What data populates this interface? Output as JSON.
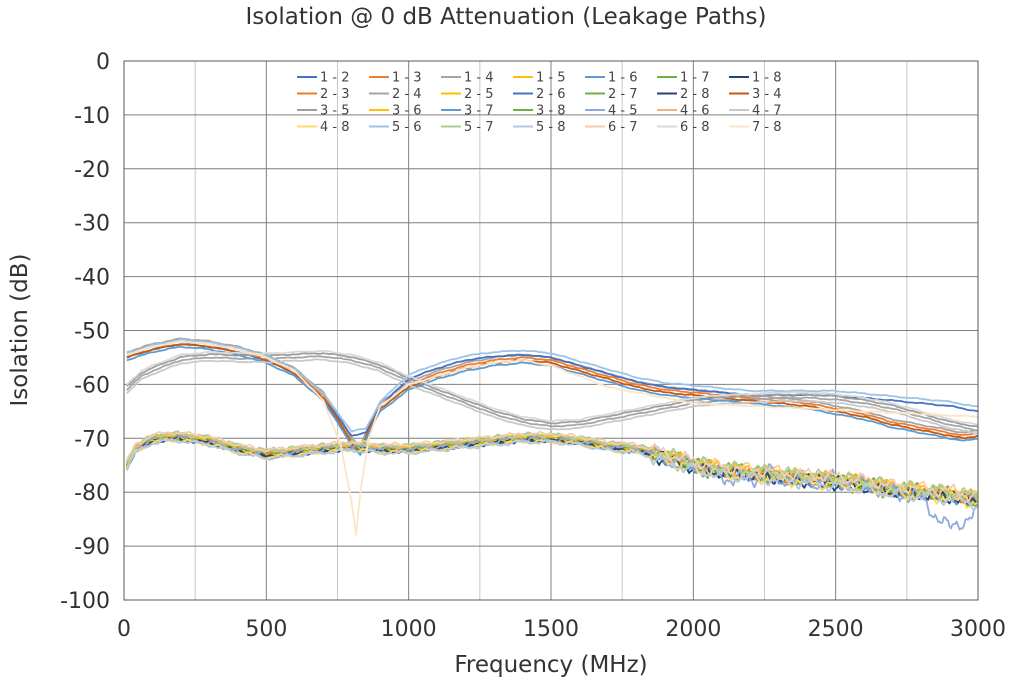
{
  "chart_data": {
    "type": "line",
    "title": "Isolation @ 0 dB Attenuation (Leakage Paths)",
    "xlabel": "Frequency (MHz)",
    "ylabel": "Isolation (dB)",
    "xlim": [
      0,
      3000
    ],
    "ylim": [
      -100,
      0
    ],
    "x_ticks": [
      0,
      500,
      1000,
      1500,
      2000,
      2500,
      3000
    ],
    "y_ticks": [
      0,
      -10,
      -20,
      -30,
      -40,
      -50,
      -60,
      -70,
      -80,
      -90,
      -100
    ],
    "x_tick_labels": [
      "0",
      "500",
      "1000",
      "1500",
      "2000",
      "2500",
      "3000"
    ],
    "y_tick_labels": [
      "0",
      "-10",
      "-20",
      "-30",
      "-40",
      "-50",
      "-60",
      "-70",
      "-80",
      "-90",
      "-100"
    ],
    "grid": true,
    "legend": "top-center",
    "series": [
      {
        "name": "1 - 2",
        "color": "#4472C4",
        "group": "adjacent",
        "offset": 0.0
      },
      {
        "name": "1 - 3",
        "color": "#ED7D31",
        "group": "notch",
        "offset": 0.0
      },
      {
        "name": "1 - 4",
        "color": "#A5A5A5",
        "group": "farA",
        "offset": 0.0
      },
      {
        "name": "1 - 5",
        "color": "#FFC000",
        "group": "adjacent",
        "offset": 0.3
      },
      {
        "name": "1 - 6",
        "color": "#5B9BD5",
        "group": "adjacent",
        "offset": -0.3
      },
      {
        "name": "1 - 7",
        "color": "#70AD47",
        "group": "adjacent",
        "offset": 0.2
      },
      {
        "name": "1 - 8",
        "color": "#264478",
        "group": "adjacent",
        "offset": -0.2
      },
      {
        "name": "2 - 3",
        "color": "#ED7D31",
        "group": "adjacent",
        "offset": 0.1
      },
      {
        "name": "2 - 4",
        "color": "#A5A5A5",
        "group": "notch",
        "offset": 0.5
      },
      {
        "name": "2 - 5",
        "color": "#FFC000",
        "group": "adjacent",
        "offset": -0.1
      },
      {
        "name": "2 - 6",
        "color": "#4472C4",
        "group": "farB",
        "offset": 0.0
      },
      {
        "name": "2 - 7",
        "color": "#70AD47",
        "group": "adjacent",
        "offset": 0.4
      },
      {
        "name": "2 - 8",
        "color": "#264478",
        "group": "adjacent",
        "offset": -0.4
      },
      {
        "name": "3 - 4",
        "color": "#C55A11",
        "group": "notch",
        "offset": -0.5
      },
      {
        "name": "3 - 5",
        "color": "#9E9E9E",
        "group": "farA",
        "offset": 0.6
      },
      {
        "name": "3 - 6",
        "color": "#FFC000",
        "group": "adjacent",
        "offset": 0.5
      },
      {
        "name": "3 - 7",
        "color": "#5B9BD5",
        "group": "notch",
        "offset": -1.0
      },
      {
        "name": "3 - 8",
        "color": "#70AD47",
        "group": "adjacent",
        "offset": -0.5
      },
      {
        "name": "4 - 5",
        "color": "#8FAADC",
        "group": "noisy",
        "offset": 0.0
      },
      {
        "name": "4 - 6",
        "color": "#F4B183",
        "group": "adjacent",
        "offset": 0.6
      },
      {
        "name": "4 - 7",
        "color": "#C9C9C9",
        "group": "farA",
        "offset": -0.6
      },
      {
        "name": "4 - 8",
        "color": "#FFD966",
        "group": "adjacent",
        "offset": -0.6
      },
      {
        "name": "5 - 6",
        "color": "#9DC3E6",
        "group": "farB",
        "offset": 0.8
      },
      {
        "name": "5 - 7",
        "color": "#A9D18E",
        "group": "adjacent",
        "offset": 0.7
      },
      {
        "name": "5 - 8",
        "color": "#B4C7E7",
        "group": "adjacent",
        "offset": -0.7
      },
      {
        "name": "6 - 7",
        "color": "#F8CBAD",
        "group": "adjacent",
        "offset": 0.8
      },
      {
        "name": "6 - 8",
        "color": "#D9D9D9",
        "group": "farA",
        "offset": 1.0
      },
      {
        "name": "7 - 8",
        "color": "#FBE5C8",
        "group": "deepnotch",
        "offset": 0.0
      }
    ],
    "curves": {
      "adjacent": {
        "x": [
          10,
          40,
          100,
          150,
          200,
          300,
          400,
          500,
          600,
          700,
          800,
          900,
          1000,
          1100,
          1200,
          1300,
          1400,
          1500,
          1600,
          1700,
          1800,
          1900,
          2000,
          2100,
          2200,
          2300,
          2400,
          2500,
          2600,
          2700,
          2800,
          2900,
          3000
        ],
        "y": [
          -75,
          -72,
          -70.2,
          -69.8,
          -69.8,
          -70.5,
          -72,
          -73,
          -72.5,
          -72,
          -71.5,
          -72,
          -72,
          -71.5,
          -71,
          -70.5,
          -70,
          -70,
          -70.5,
          -71.5,
          -72,
          -73.5,
          -75,
          -76,
          -76.5,
          -77,
          -77.5,
          -78,
          -78.5,
          -79.5,
          -80,
          -80.5,
          -81.5
        ]
      },
      "noisy": {
        "x": [
          10,
          40,
          100,
          200,
          400,
          600,
          800,
          1000,
          1200,
          1400,
          1600,
          1800,
          1900,
          2000,
          2100,
          2200,
          2250,
          2300,
          2400,
          2500,
          2600,
          2700,
          2800,
          2850,
          2900,
          2950,
          3000
        ],
        "y": [
          -75,
          -72,
          -70.2,
          -69.8,
          -72,
          -72.5,
          -71.5,
          -72,
          -71,
          -70,
          -70.5,
          -72,
          -73.5,
          -75,
          -77,
          -78,
          -76,
          -77,
          -78,
          -77.5,
          -78.5,
          -80,
          -81,
          -84,
          -87,
          -85,
          -84
        ]
      },
      "notch": {
        "x": [
          10,
          100,
          200,
          300,
          400,
          500,
          600,
          700,
          750,
          800,
          830,
          860,
          900,
          1000,
          1100,
          1200,
          1300,
          1400,
          1500,
          1600,
          1700,
          1800,
          1900,
          2000,
          2100,
          2200,
          2300,
          2400,
          2500,
          2600,
          2700,
          2800,
          2900,
          2950,
          3000
        ],
        "y": [
          -54.5,
          -53,
          -52,
          -52.5,
          -53.5,
          -55,
          -57.5,
          -62,
          -66,
          -70.5,
          -72,
          -68,
          -64,
          -60,
          -58,
          -56.5,
          -55.5,
          -55,
          -55.5,
          -57,
          -58.5,
          -60,
          -61,
          -61.5,
          -62,
          -62.5,
          -63,
          -63.5,
          -64.5,
          -65.5,
          -67,
          -68,
          -69,
          -69.5,
          -69
        ]
      },
      "deepnotch": {
        "x": [
          10,
          100,
          200,
          300,
          400,
          500,
          600,
          700,
          760,
          800,
          815,
          830,
          860,
          900,
          1000,
          1100,
          1200,
          1300,
          1400,
          1500,
          1600,
          1700,
          1800,
          1900,
          2000,
          2200,
          2400,
          2600,
          2800,
          3000
        ],
        "y": [
          -54.5,
          -53,
          -52,
          -52.5,
          -53.5,
          -55,
          -57.5,
          -63,
          -71,
          -82,
          -88,
          -80,
          -70,
          -64,
          -60,
          -58.5,
          -57,
          -56,
          -55.5,
          -56.5,
          -58.5,
          -60.5,
          -61.5,
          -62.5,
          -63.5,
          -64,
          -64.5,
          -65,
          -65.5,
          -66
        ]
      },
      "farA": {
        "x": [
          10,
          60,
          100,
          200,
          300,
          400,
          500,
          600,
          700,
          800,
          900,
          1000,
          1100,
          1200,
          1300,
          1400,
          1500,
          1600,
          1700,
          1800,
          1900,
          2000,
          2100,
          2200,
          2300,
          2400,
          2500,
          2600,
          2700,
          2800,
          2900,
          3000
        ],
        "y": [
          -61,
          -58.5,
          -57.5,
          -55.5,
          -55,
          -55.2,
          -55.3,
          -55,
          -54.8,
          -55.5,
          -57,
          -59.5,
          -61.5,
          -63.5,
          -65.5,
          -67,
          -67.8,
          -67.5,
          -66.5,
          -65.5,
          -64.5,
          -63.5,
          -63,
          -62.8,
          -62.5,
          -62.5,
          -62.8,
          -63.5,
          -64.5,
          -66,
          -67.5,
          -68.5
        ]
      },
      "farB": {
        "x": [
          10,
          100,
          200,
          300,
          400,
          500,
          600,
          700,
          750,
          800,
          850,
          900,
          1000,
          1100,
          1200,
          1300,
          1400,
          1500,
          1600,
          1700,
          1800,
          1900,
          2000,
          2100,
          2200,
          2300,
          2400,
          2500,
          2600,
          2700,
          2800,
          2900,
          3000
        ],
        "y": [
          -55,
          -53.5,
          -52.5,
          -53,
          -54,
          -55.5,
          -58,
          -62.5,
          -66,
          -69.5,
          -69,
          -64,
          -59,
          -57,
          -55.5,
          -54.8,
          -54.5,
          -55,
          -56.5,
          -58,
          -59.5,
          -60.5,
          -61,
          -61.5,
          -62,
          -62,
          -62,
          -62,
          -62.5,
          -63,
          -63.5,
          -64,
          -65
        ]
      }
    }
  }
}
